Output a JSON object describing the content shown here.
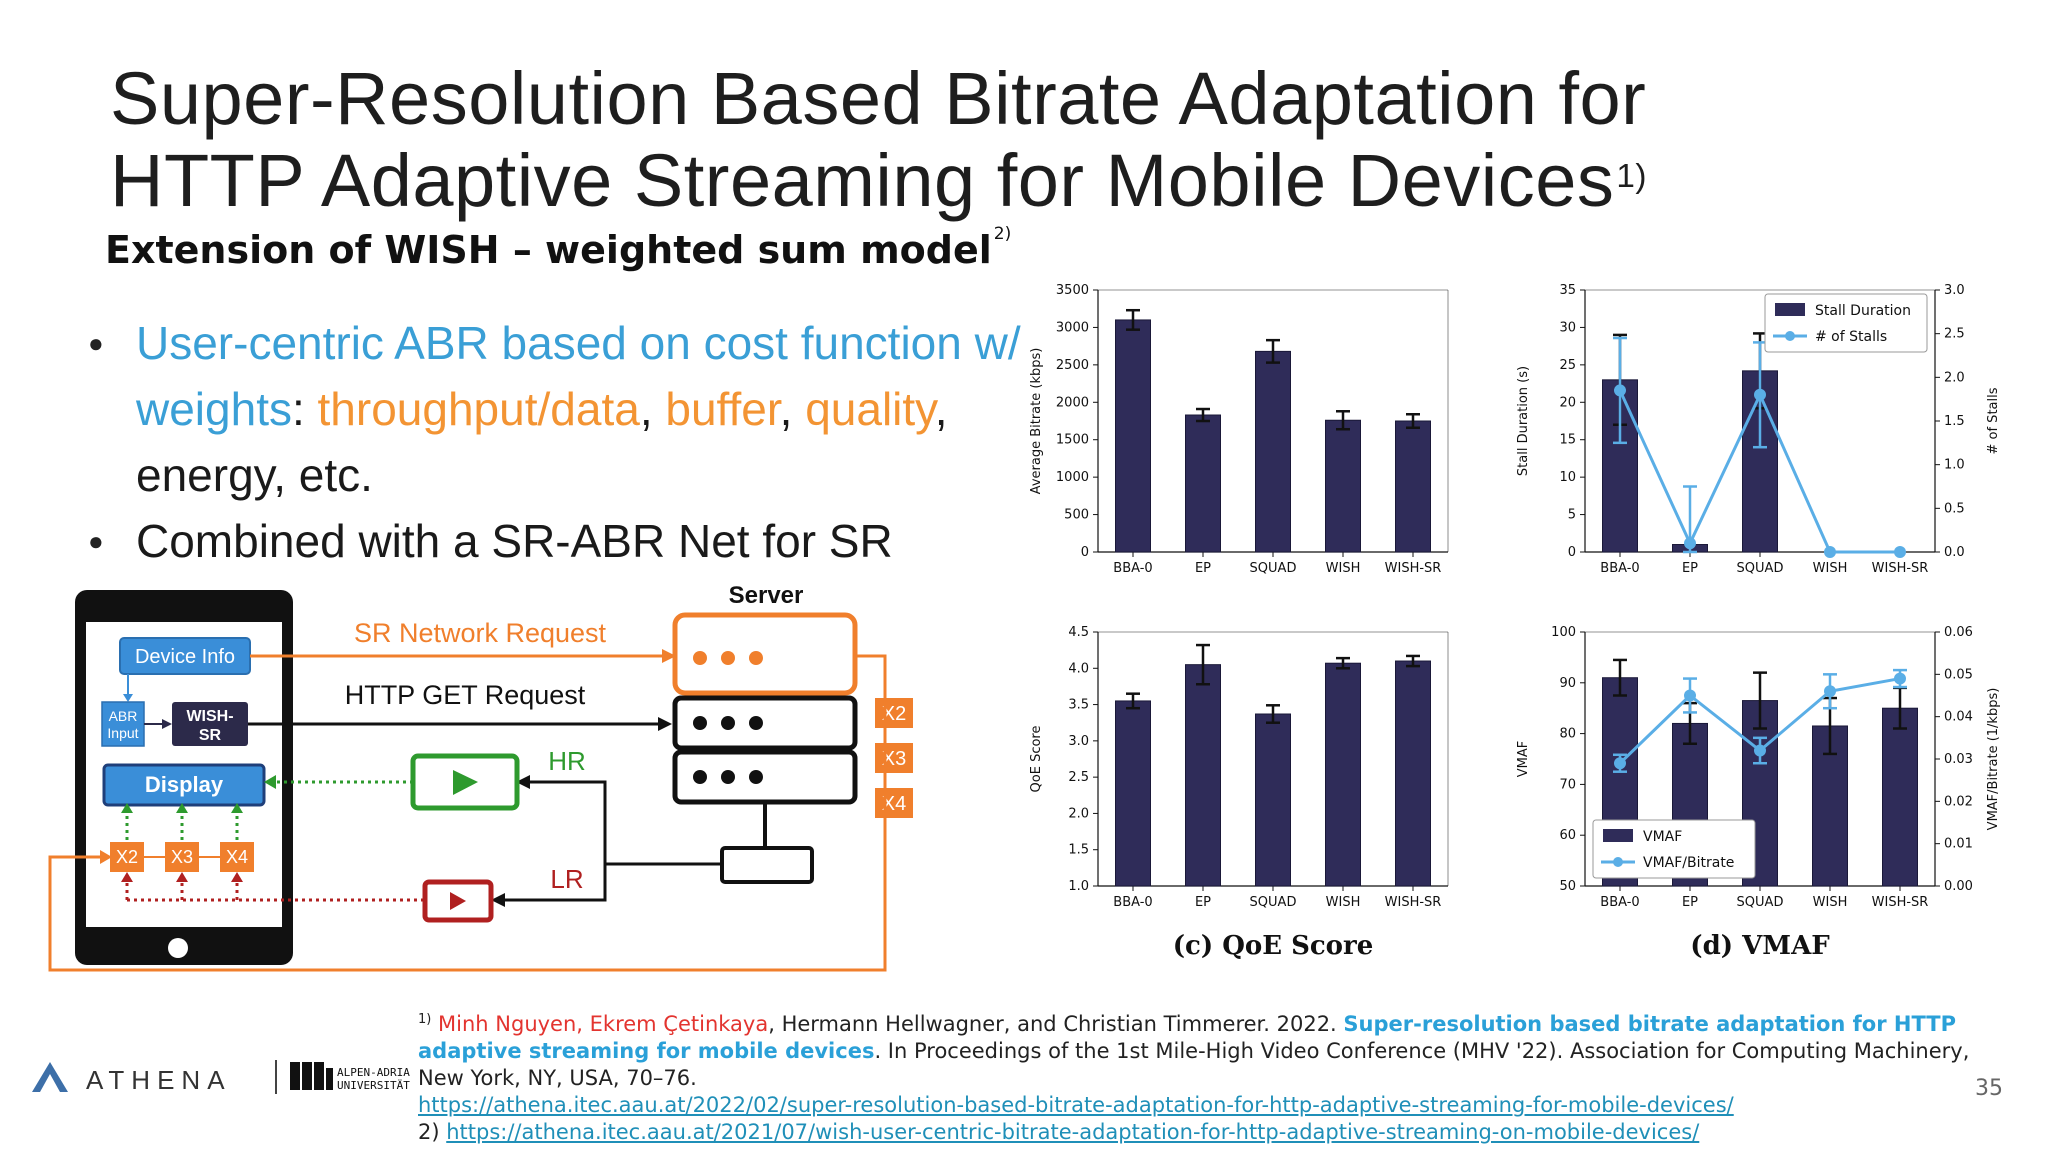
{
  "slide": {
    "title_line1": "Super-Resolution Based Bitrate Adaptation for",
    "title_line2": "HTTP Adaptive Streaming for Mobile Devices",
    "title_ref": "1)",
    "subtitle": "Extension of WISH – weighted sum model",
    "subtitle_ref": "2)",
    "page_number": "35"
  },
  "bullets": {
    "b1_part1": "User-centric ABR based on cost function w/ weights",
    "b1_colon": ": ",
    "b1_part2": "throughput/data",
    "b1_comma1": ", ",
    "b1_part3": "buffer",
    "b1_comma2": ", ",
    "b1_part4": "quality",
    "b1_rest": ", energy, etc.",
    "b2": "Combined with a SR-ABR Net for SR"
  },
  "diagram": {
    "server_label": "Server",
    "sr_request": "SR Network Request",
    "http_get": "HTTP GET Request",
    "device_info": "Device Info",
    "abr_input": "ABR Input",
    "abr_line1": "ABR",
    "abr_line2": "Input",
    "wish_line1": "WISH-",
    "wish_line2": "SR",
    "display": "Display",
    "hr": "HR",
    "lr": "LR",
    "x2": "X2",
    "x3": "X3",
    "x4": "X4",
    "colors": {
      "orange": "#f07f2c",
      "blue": "#3a8ed8",
      "green": "#2e9a2e",
      "red": "#b02020",
      "navy": "#2c2a4a"
    }
  },
  "footnote": {
    "ref1": "1)",
    "authors_red": "Minh Nguyen, Ekrem Çetinkaya",
    "authors_rest": ", Hermann Hellwagner, and Christian Timmerer. 2022. ",
    "paper_title": "Super-resolution based bitrate adaptation for HTTP adaptive streaming for mobile devices",
    "venue": ". In Proceedings of the 1st Mile-High Video Conference (MHV '22). Association for Computing Machinery, New York, NY, USA, 70–76.",
    "link1": "https://athena.itec.aau.at/2022/02/super-resolution-based-bitrate-adaptation-for-http-adaptive-streaming-for-mobile-devices/",
    "ref2": "2) ",
    "link2": "https://athena.itec.aau.at/2021/07/wish-user-centric-bitrate-adaptation-for-http-adaptive-streaming-on-mobile-devices/"
  },
  "logos": {
    "athena": "ATHENA",
    "aau_line1": "ALPEN-ADRIA",
    "aau_line2": "UNIVERSITÄT"
  },
  "chart_data": [
    {
      "type": "bar",
      "title": "",
      "categories": [
        "BBA-0",
        "EP",
        "SQUAD",
        "WISH",
        "WISH-SR"
      ],
      "values": [
        3100,
        1830,
        2680,
        1760,
        1750
      ],
      "errors": [
        130,
        80,
        150,
        120,
        90
      ],
      "ylabel": "Average Bitrate (kbps)",
      "ylim": [
        0,
        3500
      ],
      "yticks": [
        0,
        500,
        1000,
        1500,
        2000,
        2500,
        3000,
        3500
      ],
      "bar_color": "#2f2c59"
    },
    {
      "type": "bar",
      "title": "",
      "categories": [
        "BBA-0",
        "EP",
        "SQUAD",
        "WISH",
        "WISH-SR"
      ],
      "series": [
        {
          "name": "Stall Duration",
          "values": [
            23,
            1,
            24.2,
            0,
            0
          ],
          "errors": [
            6,
            0,
            5,
            0,
            0
          ],
          "axis": "left"
        },
        {
          "name": "# of Stalls",
          "values": [
            1.85,
            0.1,
            1.8,
            0,
            0
          ],
          "errors": [
            0.6,
            0.65,
            0.6,
            0,
            0
          ],
          "axis": "right"
        }
      ],
      "ylabel": "Stall Duration (s)",
      "ylim": [
        0,
        35
      ],
      "yticks": [
        0,
        5,
        10,
        15,
        20,
        25,
        30,
        35
      ],
      "y2label": "# of Stalls",
      "y2lim": [
        0,
        3.0
      ],
      "y2ticks": [
        "0.0",
        "0.5",
        "1.0",
        "1.5",
        "2.0",
        "2.5",
        "3.0"
      ],
      "legend": "top-right",
      "bar_color": "#2f2c59",
      "line_color": "#5aaee6"
    },
    {
      "type": "bar",
      "title": "(c) QoE Score",
      "categories": [
        "BBA-0",
        "EP",
        "SQUAD",
        "WISH",
        "WISH-SR"
      ],
      "values": [
        3.55,
        4.05,
        3.37,
        4.07,
        4.1
      ],
      "errors": [
        0.1,
        0.27,
        0.12,
        0.07,
        0.07
      ],
      "ylabel": "QoE Score",
      "ylim": [
        1.0,
        4.5
      ],
      "yticks": [
        "1.0",
        "1.5",
        "2.0",
        "2.5",
        "3.0",
        "3.5",
        "4.0",
        "4.5"
      ],
      "bar_color": "#2f2c59"
    },
    {
      "type": "bar",
      "title": "(d) VMAF",
      "categories": [
        "BBA-0",
        "EP",
        "SQUAD",
        "WISH",
        "WISH-SR"
      ],
      "series": [
        {
          "name": "VMAF",
          "values": [
            91,
            82,
            86.5,
            81.5,
            85
          ],
          "errors": [
            3.5,
            4,
            5.5,
            5.5,
            4
          ],
          "axis": "left"
        },
        {
          "name": "VMAF/Bitrate",
          "values": [
            0.029,
            0.045,
            0.032,
            0.046,
            0.049
          ],
          "errors": [
            0.002,
            0.004,
            0.003,
            0.004,
            0.002
          ],
          "axis": "right"
        }
      ],
      "ylabel": "VMAF",
      "ylim": [
        50,
        100
      ],
      "yticks": [
        50,
        60,
        70,
        80,
        90,
        100
      ],
      "y2label": "VMAF/Bitrate (1/kbps)",
      "y2lim": [
        0,
        0.06
      ],
      "y2ticks": [
        "0.00",
        "0.01",
        "0.02",
        "0.03",
        "0.04",
        "0.05",
        "0.06"
      ],
      "legend": "bottom-left",
      "bar_color": "#2f2c59",
      "line_color": "#5aaee6"
    }
  ]
}
